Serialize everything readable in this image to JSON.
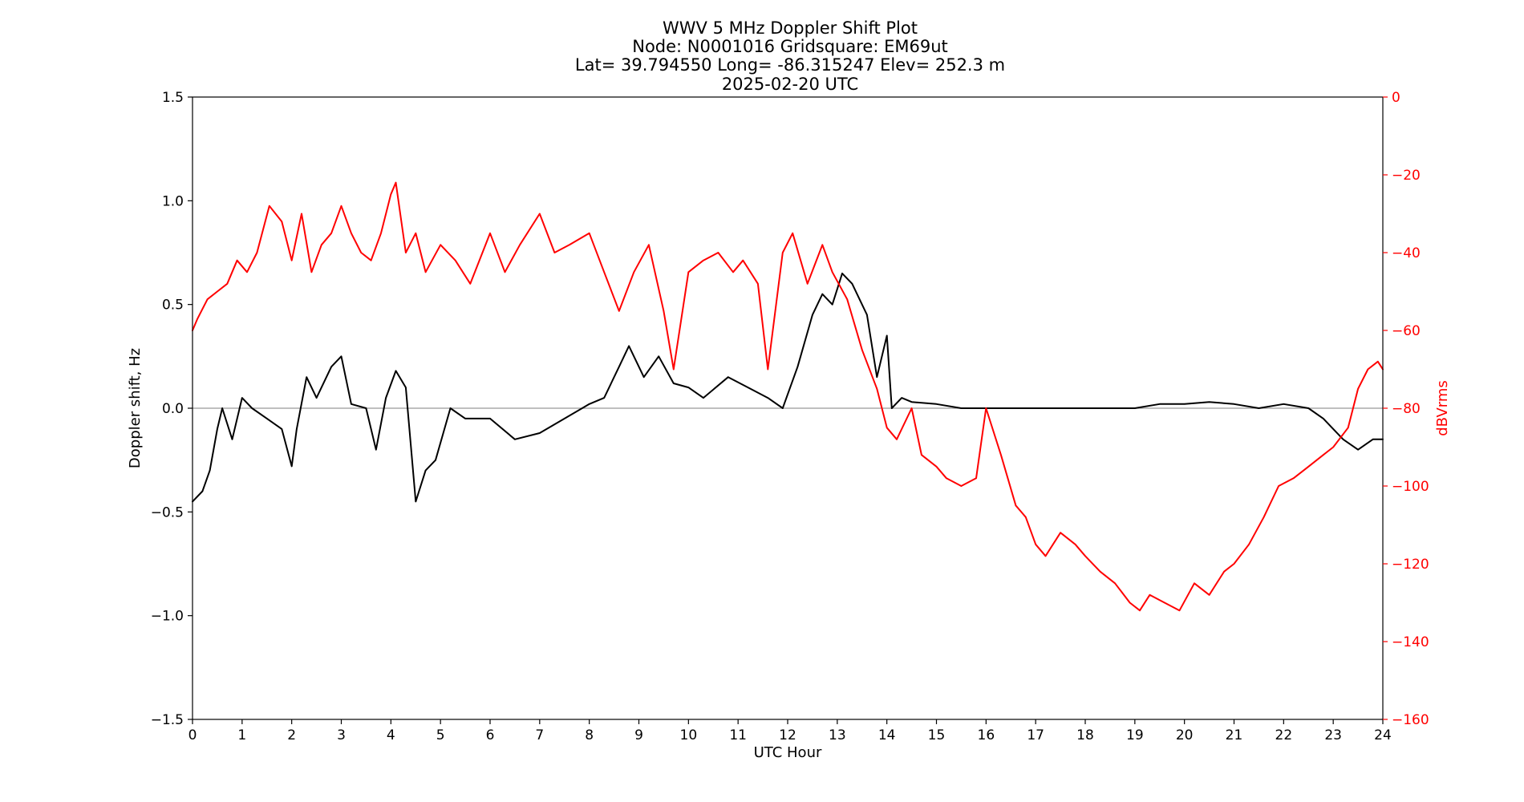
{
  "chart_data": {
    "type": "line",
    "title_lines": [
      "WWV 5 MHz Doppler Shift Plot",
      "Node:  N0001016     Gridsquare:  EM69ut",
      "Lat= 39.794550    Long= -86.315247    Elev= 252.3 m",
      "2025-02-20  UTC"
    ],
    "xlabel": "UTC Hour",
    "ylabel_left": "Doppler shift, Hz",
    "ylabel_right": "dBVrms",
    "xlim": [
      0,
      24
    ],
    "ylim_left": [
      -1.5,
      1.5
    ],
    "ylim_right": [
      -160,
      0
    ],
    "xticks": [
      "0",
      "1",
      "2",
      "3",
      "4",
      "5",
      "6",
      "7",
      "8",
      "9",
      "10",
      "11",
      "12",
      "13",
      "14",
      "15",
      "16",
      "17",
      "18",
      "19",
      "20",
      "21",
      "22",
      "23",
      "24"
    ],
    "yticks_left": [
      "1.5",
      "1.0",
      "0.5",
      "0.0",
      "−0.5",
      "−1.0",
      "−1.5"
    ],
    "yticks_right": [
      "0",
      "−20",
      "−40",
      "−60",
      "−80",
      "−100",
      "−120",
      "−140",
      "−160"
    ],
    "zero_line": 0.0,
    "series": [
      {
        "axis": "left",
        "color": "#000000",
        "x": [
          0,
          0.2,
          0.35,
          0.5,
          0.6,
          0.8,
          1.0,
          1.2,
          1.5,
          1.8,
          2.0,
          2.1,
          2.3,
          2.5,
          2.8,
          3.0,
          3.2,
          3.5,
          3.7,
          3.9,
          4.1,
          4.3,
          4.5,
          4.7,
          4.9,
          5.2,
          5.5,
          6.0,
          6.5,
          7.0,
          7.5,
          8.0,
          8.3,
          8.6,
          8.8,
          9.1,
          9.4,
          9.7,
          10.0,
          10.3,
          10.8,
          11.2,
          11.6,
          11.9,
          12.2,
          12.5,
          12.7,
          12.9,
          13.1,
          13.3,
          13.6,
          13.8,
          14.0,
          14.1,
          14.3,
          14.5,
          15.0,
          15.5,
          16.0,
          16.5,
          17.0,
          18.0,
          19.0,
          19.5,
          20.0,
          20.5,
          21.0,
          21.5,
          22.0,
          22.5,
          22.8,
          23.0,
          23.2,
          23.5,
          23.8,
          24.0
        ],
        "y": [
          -0.45,
          -0.4,
          -0.3,
          -0.1,
          0.0,
          -0.15,
          0.05,
          0.0,
          -0.05,
          -0.1,
          -0.28,
          -0.1,
          0.15,
          0.05,
          0.2,
          0.25,
          0.02,
          0.0,
          -0.2,
          0.05,
          0.18,
          0.1,
          -0.45,
          -0.3,
          -0.25,
          0.0,
          -0.05,
          -0.05,
          -0.15,
          -0.12,
          -0.05,
          0.02,
          0.05,
          0.2,
          0.3,
          0.15,
          0.25,
          0.12,
          0.1,
          0.05,
          0.15,
          0.1,
          0.05,
          0.0,
          0.2,
          0.45,
          0.55,
          0.5,
          0.65,
          0.6,
          0.45,
          0.15,
          0.35,
          0.0,
          0.05,
          0.03,
          0.02,
          0.0,
          0.0,
          0.0,
          0.0,
          0.0,
          0.0,
          0.02,
          0.02,
          0.03,
          0.02,
          0.0,
          0.02,
          0.0,
          -0.05,
          -0.1,
          -0.15,
          -0.2,
          -0.15,
          -0.15
        ]
      },
      {
        "axis": "right",
        "color": "#ff0000",
        "x": [
          0,
          0.1,
          0.3,
          0.5,
          0.7,
          0.9,
          1.1,
          1.3,
          1.55,
          1.8,
          2.0,
          2.2,
          2.4,
          2.6,
          2.8,
          3.0,
          3.2,
          3.4,
          3.6,
          3.8,
          4.0,
          4.1,
          4.3,
          4.5,
          4.7,
          5.0,
          5.3,
          5.6,
          6.0,
          6.3,
          6.6,
          7.0,
          7.3,
          7.6,
          8.0,
          8.3,
          8.6,
          8.9,
          9.2,
          9.5,
          9.7,
          10.0,
          10.3,
          10.6,
          10.9,
          11.1,
          11.4,
          11.6,
          11.9,
          12.1,
          12.4,
          12.7,
          12.9,
          13.2,
          13.5,
          13.8,
          14.0,
          14.2,
          14.5,
          14.7,
          15.0,
          15.2,
          15.5,
          15.8,
          16.0,
          16.3,
          16.6,
          16.8,
          17.0,
          17.2,
          17.5,
          17.8,
          18.0,
          18.3,
          18.6,
          18.9,
          19.1,
          19.3,
          19.6,
          19.9,
          20.2,
          20.5,
          20.8,
          21.0,
          21.3,
          21.6,
          21.9,
          22.2,
          22.5,
          22.8,
          23.0,
          23.3,
          23.5,
          23.7,
          23.9,
          24.0
        ],
        "y": [
          -60,
          -57,
          -52,
          -50,
          -48,
          -42,
          -45,
          -40,
          -28,
          -32,
          -42,
          -30,
          -45,
          -38,
          -35,
          -28,
          -35,
          -40,
          -42,
          -35,
          -25,
          -22,
          -40,
          -35,
          -45,
          -38,
          -42,
          -48,
          -35,
          -45,
          -38,
          -30,
          -40,
          -38,
          -35,
          -45,
          -55,
          -45,
          -38,
          -55,
          -70,
          -45,
          -42,
          -40,
          -45,
          -42,
          -48,
          -70,
          -40,
          -35,
          -48,
          -38,
          -45,
          -52,
          -65,
          -75,
          -85,
          -88,
          -80,
          -92,
          -95,
          -98,
          -100,
          -98,
          -80,
          -92,
          -105,
          -108,
          -115,
          -118,
          -112,
          -115,
          -118,
          -122,
          -125,
          -130,
          -132,
          -128,
          -130,
          -132,
          -125,
          -128,
          -122,
          -120,
          -115,
          -108,
          -100,
          -98,
          -95,
          -92,
          -90,
          -85,
          -75,
          -70,
          -68,
          -70
        ]
      }
    ]
  }
}
